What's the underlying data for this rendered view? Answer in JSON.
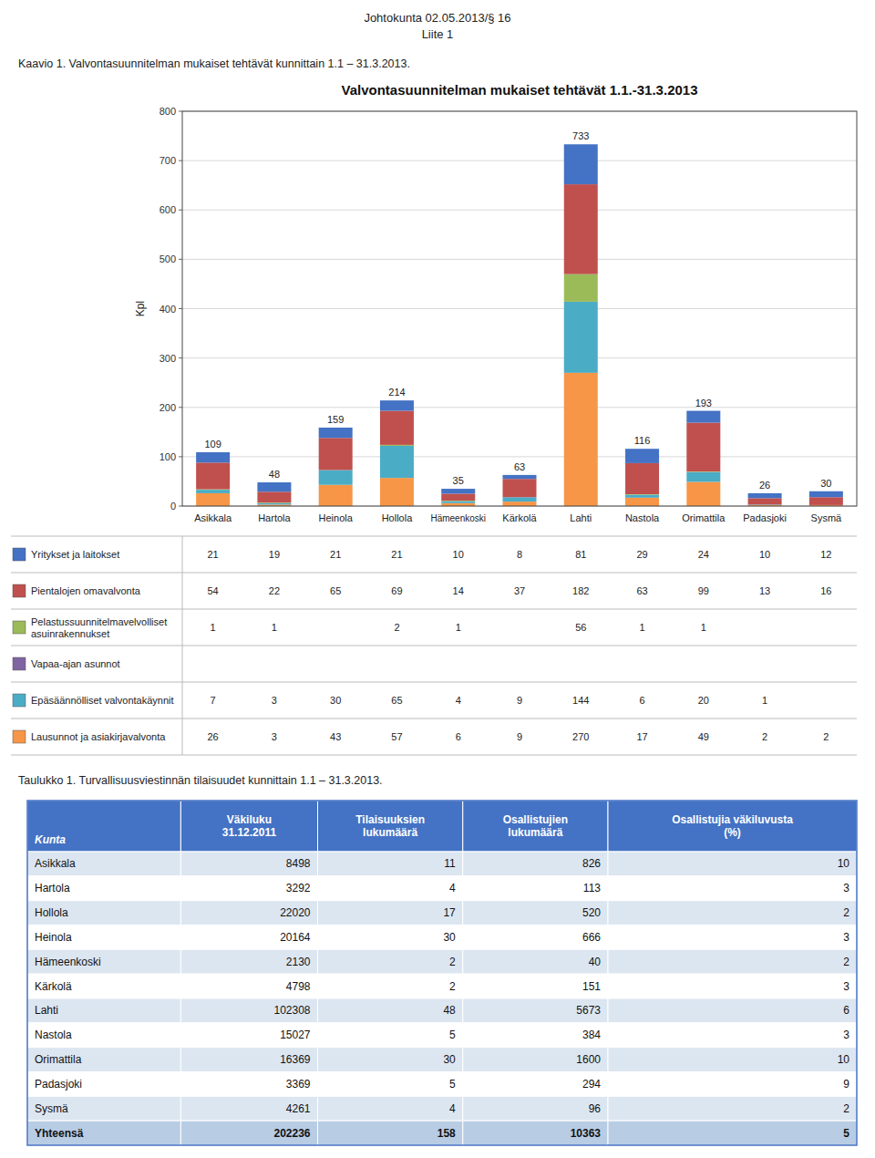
{
  "page_titles": [
    "Johtokunta 02.05.2013/§ 16",
    "Liite 1"
  ],
  "captions": [
    "Kaavio 1. Valvontasuunnitelman mukaiset tehtävät kunnittain 1.1 – 31.3.2013.",
    "Taulukko 1. Turvallisuusviestinnän tilaisuudet kunnittain 1.1 – 31.3.2013."
  ],
  "chart_data": {
    "type": "bar",
    "stacked": true,
    "title": "Valvontasuunnitelman mukaiset tehtävät 1.1.-31.3.2013",
    "y_label": "Kpl",
    "categories": [
      "Asikkala",
      "Hartola",
      "Heinola",
      "Hollola",
      "Hämeenkoski",
      "Kärkolä",
      "Lahti",
      "Nastola",
      "Orimattila",
      "Padasjoki",
      "Sysmä"
    ],
    "series": [
      {
        "name": "Lausunnot ja asiakirjavalvonta",
        "color": "#F79646",
        "values": [
          26,
          3,
          43,
          57,
          6,
          9,
          270,
          17,
          49,
          2,
          2
        ]
      },
      {
        "name": "Epäsäännölliset valvontakäynnit",
        "color": "#4BACC6",
        "values": [
          7,
          3,
          30,
          65,
          4,
          9,
          144,
          6,
          20,
          1,
          0
        ]
      },
      {
        "name": "Vapaa-ajan asunnot",
        "color": "#8064A2",
        "values": [
          0,
          0,
          0,
          0,
          0,
          0,
          0,
          0,
          0,
          0,
          0
        ]
      },
      {
        "name": "Pelastussuunnitelmavelvolliset asuinrakennukset",
        "color": "#9BBB59",
        "values": [
          1,
          1,
          0,
          2,
          1,
          0,
          56,
          1,
          1,
          0,
          0
        ]
      },
      {
        "name": "Pientalojen omavalvonta",
        "color": "#C0504D",
        "values": [
          54,
          22,
          65,
          69,
          14,
          37,
          182,
          63,
          99,
          13,
          16
        ]
      },
      {
        "name": "Yritykset ja laitokset",
        "color": "#4472C4",
        "values": [
          21,
          19,
          21,
          21,
          10,
          8,
          81,
          29,
          24,
          10,
          12
        ]
      }
    ],
    "totals": [
      109,
      48,
      159,
      214,
      35,
      63,
      733,
      116,
      193,
      26,
      30
    ],
    "ylim": [
      0,
      800
    ],
    "yticks": [
      0,
      100,
      200,
      300,
      400,
      500,
      600,
      700,
      800
    ],
    "grid": true,
    "legend": "bottom"
  },
  "table": {
    "headers": [
      "Kunta",
      "Väkiluku\n31.12.2011",
      "Tilaisuuksien\nlukumäärä",
      "Osallistujien\nlukumäärä",
      "Osallistujia väkiluvusta\n(%)"
    ],
    "rows": [
      [
        "Asikkala",
        "8498",
        "11",
        "826",
        "10"
      ],
      [
        "Hartola",
        "3292",
        "4",
        "113",
        "3"
      ],
      [
        "Hollola",
        "22020",
        "17",
        "520",
        "2"
      ],
      [
        "Heinola",
        "20164",
        "30",
        "666",
        "3"
      ],
      [
        "Hämeenkoski",
        "2130",
        "2",
        "40",
        "2"
      ],
      [
        "Kärkolä",
        "4798",
        "2",
        "151",
        "3"
      ],
      [
        "Lahti",
        "102308",
        "48",
        "5673",
        "6"
      ],
      [
        "Nastola",
        "15027",
        "5",
        "384",
        "3"
      ],
      [
        "Orimattila",
        "16369",
        "30",
        "1600",
        "10"
      ],
      [
        "Padasjoki",
        "3369",
        "5",
        "294",
        "9"
      ],
      [
        "Sysmä",
        "4261",
        "4",
        "96",
        "2"
      ],
      [
        "Yhteensä",
        "202236",
        "158",
        "10363",
        "5"
      ]
    ]
  }
}
